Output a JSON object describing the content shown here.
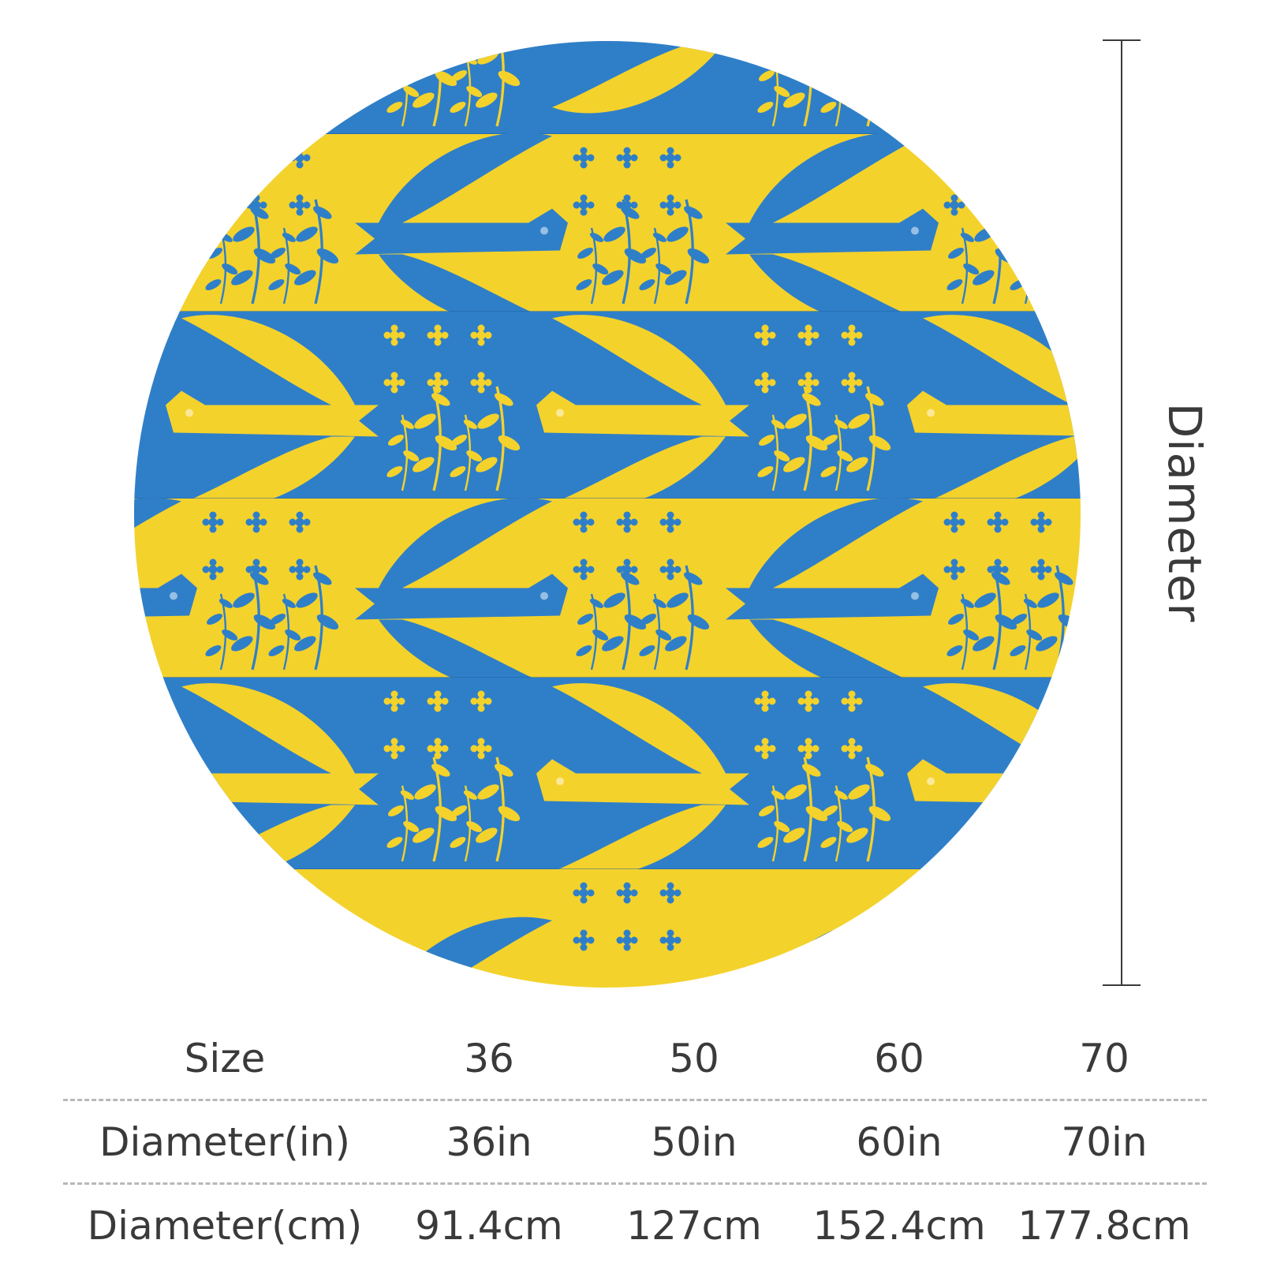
{
  "product": {
    "pattern": "blue and yellow folk bird and floral stripes",
    "colors": {
      "yellow": "#f4d22c",
      "blue": "#2f7fc8",
      "line": "#3a3a3a"
    }
  },
  "dimension_label": "Diameter",
  "size_table": {
    "rows": [
      {
        "label": "Size",
        "values": [
          "36",
          "50",
          "60",
          "70"
        ]
      },
      {
        "label": "Diameter(in)",
        "values": [
          "36in",
          "50in",
          "60in",
          "70in"
        ]
      },
      {
        "label": "Diameter(cm)",
        "values": [
          "91.4cm",
          "127cm",
          "152.4cm",
          "177.8cm"
        ]
      }
    ]
  }
}
